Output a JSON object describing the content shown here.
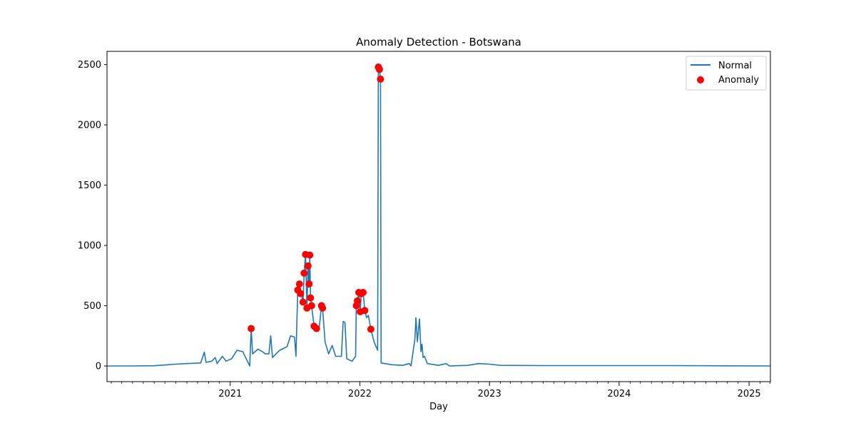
{
  "chart_data": {
    "type": "line",
    "title": "Anomaly Detection - Botswana",
    "xlabel": "Day",
    "ylabel": "",
    "xlim": [
      "2020-01-20",
      "2025-03-02"
    ],
    "ylim": [
      -130,
      2610
    ],
    "x_ticks": [
      "2021",
      "2022",
      "2023",
      "2024",
      "2025"
    ],
    "y_ticks": [
      0,
      500,
      1000,
      1500,
      2000,
      2500
    ],
    "grid": false,
    "legend": {
      "placement": "top-right",
      "entries": [
        "Normal",
        "Anomaly"
      ]
    },
    "colors": {
      "normal": "#1f77b4",
      "anomaly": "#ff0000"
    },
    "series": [
      {
        "name": "Normal",
        "style": "line",
        "points": [
          [
            "2020-01-20",
            0
          ],
          [
            "2020-04-01",
            0
          ],
          [
            "2020-06-01",
            2
          ],
          [
            "2020-07-01",
            8
          ],
          [
            "2020-08-01",
            15
          ],
          [
            "2020-09-01",
            20
          ],
          [
            "2020-10-10",
            25
          ],
          [
            "2020-10-20",
            115
          ],
          [
            "2020-10-25",
            30
          ],
          [
            "2020-11-10",
            40
          ],
          [
            "2020-11-20",
            70
          ],
          [
            "2020-11-25",
            20
          ],
          [
            "2020-12-10",
            80
          ],
          [
            "2020-12-20",
            40
          ],
          [
            "2021-01-05",
            60
          ],
          [
            "2021-01-20",
            130
          ],
          [
            "2021-02-05",
            120
          ],
          [
            "2021-02-25",
            0
          ],
          [
            "2021-03-01",
            310
          ],
          [
            "2021-03-05",
            100
          ],
          [
            "2021-03-20",
            140
          ],
          [
            "2021-04-01",
            120
          ],
          [
            "2021-04-10",
            100
          ],
          [
            "2021-04-20",
            100
          ],
          [
            "2021-04-25",
            250
          ],
          [
            "2021-04-30",
            70
          ],
          [
            "2021-05-20",
            130
          ],
          [
            "2021-06-10",
            160
          ],
          [
            "2021-06-20",
            250
          ],
          [
            "2021-07-01",
            240
          ],
          [
            "2021-07-05",
            80
          ],
          [
            "2021-07-10",
            630
          ],
          [
            "2021-07-15",
            680
          ],
          [
            "2021-07-20",
            600
          ],
          [
            "2021-07-25",
            530
          ],
          [
            "2021-07-28",
            770
          ],
          [
            "2021-08-01",
            920
          ],
          [
            "2021-08-05",
            480
          ],
          [
            "2021-08-08",
            830
          ],
          [
            "2021-08-11",
            680
          ],
          [
            "2021-08-13",
            920
          ],
          [
            "2021-08-15",
            565
          ],
          [
            "2021-08-18",
            500
          ],
          [
            "2021-08-25",
            330
          ],
          [
            "2021-09-01",
            310
          ],
          [
            "2021-09-08",
            300
          ],
          [
            "2021-09-15",
            500
          ],
          [
            "2021-09-18",
            480
          ],
          [
            "2021-09-25",
            200
          ],
          [
            "2021-10-05",
            100
          ],
          [
            "2021-10-15",
            170
          ],
          [
            "2021-10-25",
            80
          ],
          [
            "2021-11-10",
            80
          ],
          [
            "2021-11-15",
            370
          ],
          [
            "2021-11-20",
            360
          ],
          [
            "2021-11-25",
            60
          ],
          [
            "2021-12-10",
            40
          ],
          [
            "2021-12-20",
            80
          ],
          [
            "2021-12-22",
            500
          ],
          [
            "2021-12-25",
            540
          ],
          [
            "2021-12-29",
            610
          ],
          [
            "2022-01-02",
            450
          ],
          [
            "2022-01-05",
            600
          ],
          [
            "2022-01-10",
            610
          ],
          [
            "2022-01-15",
            460
          ],
          [
            "2022-01-20",
            400
          ],
          [
            "2022-01-25",
            420
          ],
          [
            "2022-02-01",
            305
          ],
          [
            "2022-02-10",
            200
          ],
          [
            "2022-02-20",
            130
          ],
          [
            "2022-02-22",
            2480
          ],
          [
            "2022-02-25",
            2460
          ],
          [
            "2022-02-28",
            2380
          ],
          [
            "2022-03-02",
            25
          ],
          [
            "2022-04-01",
            10
          ],
          [
            "2022-05-01",
            5
          ],
          [
            "2022-05-20",
            20
          ],
          [
            "2022-05-25",
            0
          ],
          [
            "2022-06-05",
            220
          ],
          [
            "2022-06-08",
            400
          ],
          [
            "2022-06-12",
            200
          ],
          [
            "2022-06-18",
            390
          ],
          [
            "2022-06-22",
            120
          ],
          [
            "2022-06-25",
            180
          ],
          [
            "2022-06-28",
            70
          ],
          [
            "2022-07-02",
            80
          ],
          [
            "2022-07-10",
            20
          ],
          [
            "2022-08-10",
            5
          ],
          [
            "2022-09-01",
            20
          ],
          [
            "2022-09-10",
            0
          ],
          [
            "2022-11-01",
            5
          ],
          [
            "2022-12-01",
            20
          ],
          [
            "2023-01-01",
            15
          ],
          [
            "2023-02-01",
            5
          ],
          [
            "2023-06-01",
            3
          ],
          [
            "2024-01-01",
            3
          ],
          [
            "2024-06-01",
            3
          ],
          [
            "2025-03-02",
            0
          ]
        ]
      },
      {
        "name": "Anomaly",
        "style": "scatter",
        "points": [
          [
            "2021-03-01",
            310
          ],
          [
            "2021-07-10",
            630
          ],
          [
            "2021-07-15",
            680
          ],
          [
            "2021-07-18",
            600
          ],
          [
            "2021-07-25",
            530
          ],
          [
            "2021-07-28",
            770
          ],
          [
            "2021-08-01",
            925
          ],
          [
            "2021-08-05",
            480
          ],
          [
            "2021-08-08",
            830
          ],
          [
            "2021-08-11",
            680
          ],
          [
            "2021-08-13",
            920
          ],
          [
            "2021-08-15",
            565
          ],
          [
            "2021-08-18",
            500
          ],
          [
            "2021-08-25",
            330
          ],
          [
            "2021-09-01",
            310
          ],
          [
            "2021-09-15",
            500
          ],
          [
            "2021-09-18",
            480
          ],
          [
            "2021-12-22",
            500
          ],
          [
            "2021-12-25",
            540
          ],
          [
            "2021-12-29",
            610
          ],
          [
            "2022-01-02",
            450
          ],
          [
            "2022-01-05",
            600
          ],
          [
            "2022-01-10",
            610
          ],
          [
            "2022-01-15",
            460
          ],
          [
            "2022-02-01",
            305
          ],
          [
            "2022-02-22",
            2480
          ],
          [
            "2022-02-25",
            2460
          ],
          [
            "2022-02-28",
            2380
          ]
        ]
      }
    ]
  }
}
